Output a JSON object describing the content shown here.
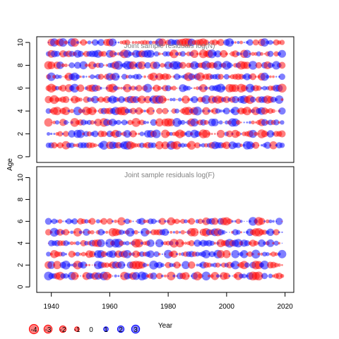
{
  "chart_data": {
    "type": "scatter",
    "ylabel": "Age",
    "xlabel": "Year",
    "xlim": [
      1935,
      2023
    ],
    "x_ticks": [
      "1940",
      "1960",
      "1980",
      "2000",
      "2020"
    ],
    "size_encodes": "absolute residual",
    "colors": {
      "positive": "#0000ff",
      "negative": "#ff0000",
      "alpha": 0.5
    },
    "panels": [
      {
        "title": "Joint sample residuals log(N)",
        "ylim": [
          -0.5,
          10.5
        ],
        "y_ticks": [
          "0",
          "2",
          "4",
          "6",
          "8",
          "10"
        ],
        "ages": [
          1,
          10
        ],
        "years": [
          1939,
          2019
        ]
      },
      {
        "title": "Joint sample residuals log(F)",
        "ylim": [
          -0.5,
          11
        ],
        "y_ticks": [
          "0",
          "2",
          "4",
          "6",
          "8",
          "10"
        ],
        "ages": [
          1,
          6
        ],
        "years": [
          1939,
          2019
        ]
      }
    ],
    "legend": {
      "values": [
        -4,
        -3,
        -2,
        -1,
        0,
        1,
        2,
        3
      ],
      "labels": [
        "-4",
        "-3",
        "-2",
        "-1",
        "0",
        "1",
        "2",
        "3"
      ]
    }
  }
}
